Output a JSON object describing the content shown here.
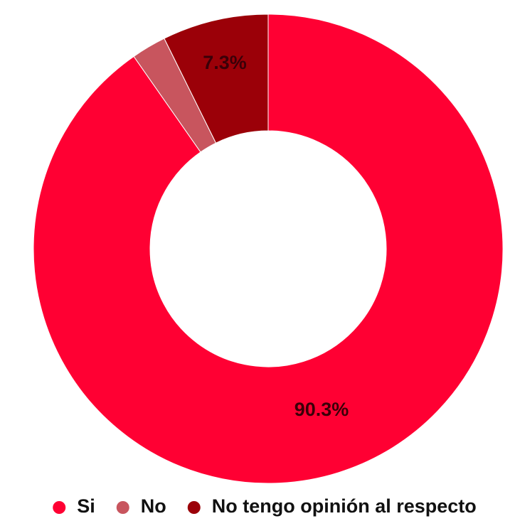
{
  "chart_data": {
    "type": "pie",
    "donut": true,
    "title": "",
    "categories": [
      "Si",
      "No",
      "No tengo opinión al respecto"
    ],
    "values": [
      90.3,
      2.4,
      7.3
    ],
    "data_labels": [
      "90.3%",
      "",
      "7.3%"
    ],
    "colors": [
      "#ff0033",
      "#c8555e",
      "#9b0008"
    ],
    "legend": {
      "position": "bottom",
      "entries": [
        "Si",
        "No",
        "No tengo opinión al respecto"
      ]
    },
    "start_angle": "top",
    "direction": "clockwise"
  }
}
